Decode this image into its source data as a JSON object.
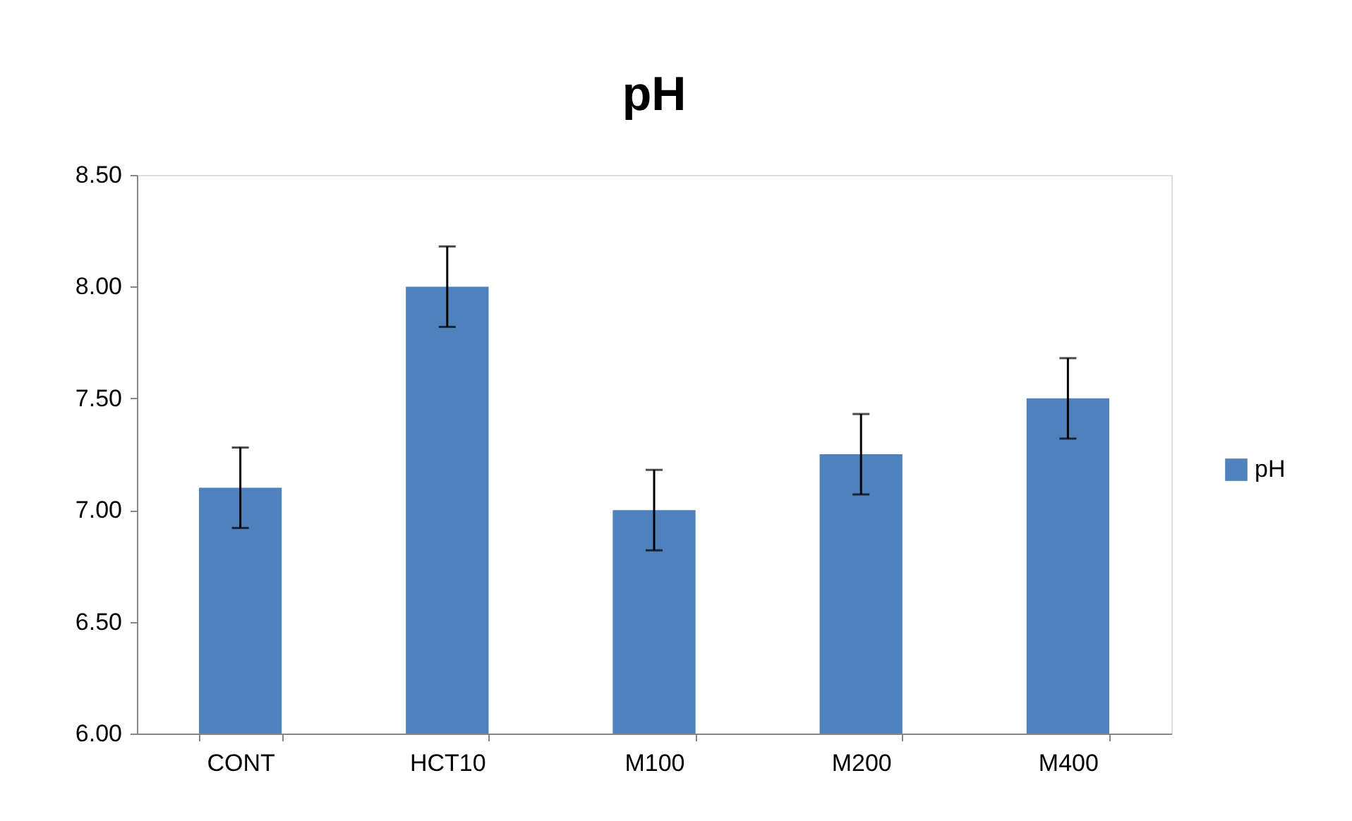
{
  "chart_data": {
    "type": "bar",
    "title": "pH",
    "categories": [
      "CONT",
      "HCT10",
      "M100",
      "M200",
      "M400"
    ],
    "series": [
      {
        "name": "pH",
        "color": "#4f81bd",
        "values": [
          7.1,
          8.0,
          7.0,
          7.25,
          7.5
        ],
        "errors": [
          0.18,
          0.18,
          0.18,
          0.18,
          0.18
        ]
      }
    ],
    "ylim": [
      6.0,
      8.5
    ],
    "yticks": [
      {
        "value": 6.0,
        "label": "6.00"
      },
      {
        "value": 6.5,
        "label": "6.50"
      },
      {
        "value": 7.0,
        "label": "7.00"
      },
      {
        "value": 7.5,
        "label": "7.50"
      },
      {
        "value": 8.0,
        "label": "8.00"
      },
      {
        "value": 8.5,
        "label": "8.50"
      }
    ],
    "grid": false,
    "legend": "right"
  }
}
